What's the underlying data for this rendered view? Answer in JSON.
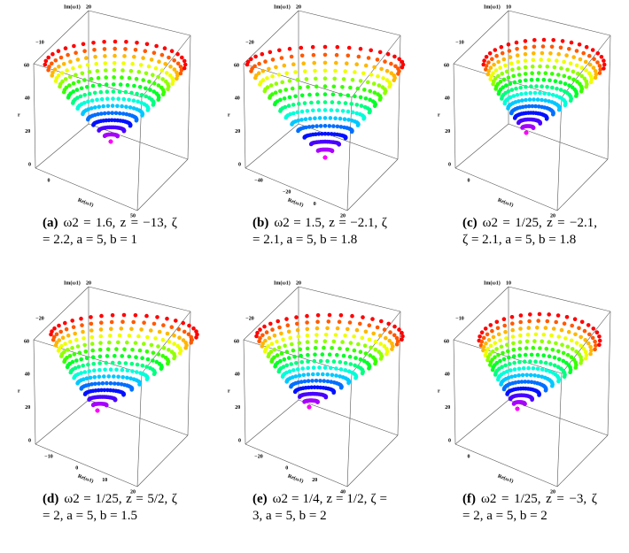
{
  "panels": [
    {
      "label": "(a)",
      "caption": "ω2 = 1.6, z = −13, ζ = 2.2, a = 5, b = 1",
      "axes": {
        "im_label": "Im(ω1)",
        "r_label": "r",
        "re_label": "Re(ω1)",
        "im_ticks": [
          "−10",
          "20"
        ],
        "r_ticks": [
          "60",
          "40",
          "20",
          "0"
        ],
        "re_ticks": [
          "0",
          "50"
        ]
      }
    },
    {
      "label": "(b)",
      "caption": "ω2 = 1.5, z = −2.1, ζ = 2.1, a = 5, b = 1.8",
      "axes": {
        "im_label": "Im(ω1)",
        "r_label": "r",
        "re_label": "Re(ω1)",
        "im_ticks": [
          "−20",
          "20"
        ],
        "r_ticks": [
          "60",
          "40",
          "20",
          "0"
        ],
        "re_ticks": [
          "−40",
          "−20",
          "0",
          "20"
        ]
      }
    },
    {
      "label": "(c)",
      "caption": "ω2 = 1/25, z = −2.1, ζ = 2.1, a = 5, b = 1.8",
      "axes": {
        "im_label": "Im(ω1)",
        "r_label": "r",
        "re_label": "Re(ω1)",
        "im_ticks": [
          "−10",
          "10"
        ],
        "r_ticks": [
          "60",
          "40",
          "20",
          "0"
        ],
        "re_ticks": [
          "0",
          "20"
        ]
      }
    },
    {
      "label": "(d)",
      "caption": "ω2 = 1/25, z = 5/2, ζ = 2, a = 5, b = 1.5",
      "axes": {
        "im_label": "Im(ω1)",
        "r_label": "r",
        "re_label": "Re(ω1)",
        "im_ticks": [
          "−20",
          "20"
        ],
        "r_ticks": [
          "60",
          "40",
          "20",
          "0"
        ],
        "re_ticks": [
          "−10",
          "0",
          "10",
          "20"
        ]
      }
    },
    {
      "label": "(e)",
      "caption": "ω2 = 1/4, z = 1/2, ζ = 3, a = 5, b = 2",
      "axes": {
        "im_label": "Im(ω1)",
        "r_label": "r",
        "re_label": "Re(ω1)",
        "im_ticks": [
          "−20",
          "20"
        ],
        "r_ticks": [
          "60",
          "40",
          "20",
          "0"
        ],
        "re_ticks": [
          "−20",
          "0",
          "20",
          "40"
        ]
      }
    },
    {
      "label": "(f)",
      "caption": "ω2 = 1/25, z = −3, ζ = 2, a = 5, b = 2",
      "axes": {
        "im_label": "Im(ω1)",
        "r_label": "r",
        "re_label": "Re(ω1)",
        "im_ticks": [
          "−10",
          "10"
        ],
        "r_ticks": [
          "60",
          "40",
          "20",
          "0"
        ],
        "re_ticks": [
          "0",
          "20"
        ]
      }
    }
  ]
}
